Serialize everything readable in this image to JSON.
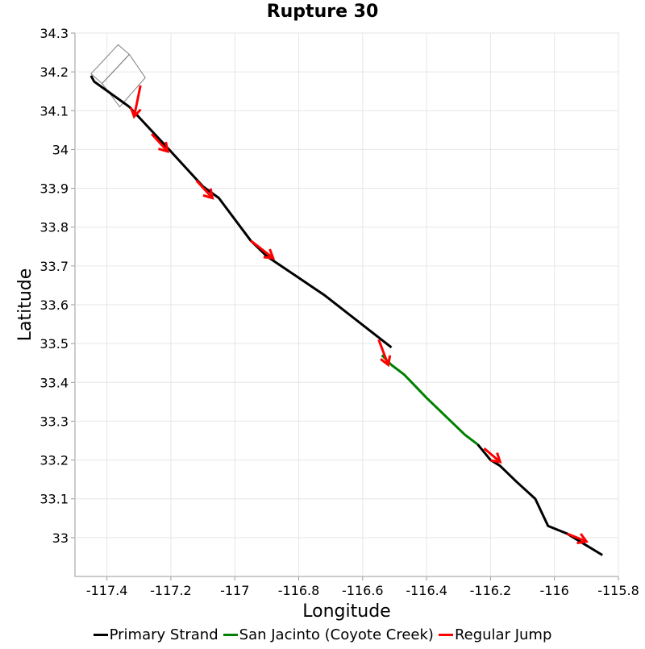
{
  "chart_data": {
    "type": "line",
    "title": "Rupture 30",
    "xlabel": "Longitude",
    "ylabel": "Latitude",
    "xlim": [
      -117.5,
      -115.8
    ],
    "ylim": [
      32.9,
      34.3
    ],
    "xticks": [
      "-117.4",
      "-117.2",
      "-117",
      "-116.8",
      "-116.6",
      "-116.4",
      "-116.2",
      "-116",
      "-115.8"
    ],
    "xtick_values": [
      -117.4,
      -117.2,
      -117.0,
      -116.8,
      -116.6,
      -116.4,
      -116.2,
      -116.0,
      -115.8
    ],
    "yticks": [
      "34.3",
      "34.2",
      "34.1",
      "34",
      "33.9",
      "33.8",
      "33.7",
      "33.6",
      "33.5",
      "33.4",
      "33.3",
      "33.2",
      "33.1",
      "33"
    ],
    "ytick_values": [
      34.3,
      34.2,
      34.1,
      34.0,
      33.9,
      33.8,
      33.7,
      33.6,
      33.5,
      33.4,
      33.3,
      33.2,
      33.1,
      33.0
    ],
    "grid": true,
    "legend_position": "bottom",
    "series": [
      {
        "name": "Primary Strand",
        "color": "#000000",
        "segments": [
          [
            [
              -117.45,
              34.19
            ],
            [
              -117.44,
              34.175
            ],
            [
              -117.33,
              34.11
            ]
          ],
          [
            [
              -117.33,
              34.11
            ],
            [
              -117.2,
              33.995
            ],
            [
              -117.1,
              33.905
            ],
            [
              -117.05,
              33.875
            ],
            [
              -116.95,
              33.765
            ],
            [
              -116.9,
              33.725
            ],
            [
              -116.72,
              33.625
            ],
            [
              -116.51,
              33.49
            ]
          ],
          [
            [
              -116.24,
              33.24
            ],
            [
              -116.2,
              33.2
            ],
            [
              -116.17,
              33.185
            ],
            [
              -116.12,
              33.145
            ],
            [
              -116.06,
              33.1
            ],
            [
              -116.02,
              33.03
            ],
            [
              -115.96,
              33.01
            ],
            [
              -115.92,
              32.99
            ],
            [
              -115.86,
              32.96
            ],
            [
              -115.85,
              32.955
            ]
          ]
        ]
      },
      {
        "name": "San Jacinto (Coyote Creek)",
        "color": "#008000",
        "segments": [
          [
            [
              -116.54,
              33.47
            ],
            [
              -116.51,
              33.445
            ],
            [
              -116.47,
              33.42
            ],
            [
              -116.4,
              33.36
            ],
            [
              -116.28,
              33.265
            ],
            [
              -116.24,
              33.24
            ]
          ]
        ]
      },
      {
        "name": "Regular Jump",
        "color": "#ff0000",
        "segments": [
          [
            [
              -117.295,
              34.165
            ],
            [
              -117.315,
              34.085
            ]
          ],
          [
            [
              -117.26,
              34.04
            ],
            [
              -117.21,
              33.995
            ]
          ],
          [
            [
              -117.12,
              33.92
            ],
            [
              -117.07,
              33.875
            ]
          ],
          [
            [
              -116.95,
              33.765
            ],
            [
              -116.88,
              33.72
            ]
          ],
          [
            [
              -116.55,
              33.51
            ],
            [
              -116.52,
              33.445
            ]
          ],
          [
            [
              -116.22,
              33.23
            ],
            [
              -116.17,
              33.195
            ]
          ],
          [
            [
              -115.96,
              33.01
            ],
            [
              -115.9,
              32.99
            ]
          ]
        ]
      }
    ],
    "outlines": [
      [
        [
          -117.45,
          34.195
        ],
        [
          -117.365,
          34.27
        ],
        [
          -117.33,
          34.245
        ],
        [
          -117.415,
          34.17
        ]
      ],
      [
        [
          -117.415,
          34.17
        ],
        [
          -117.33,
          34.245
        ],
        [
          -117.28,
          34.185
        ],
        [
          -117.36,
          34.11
        ]
      ]
    ]
  }
}
